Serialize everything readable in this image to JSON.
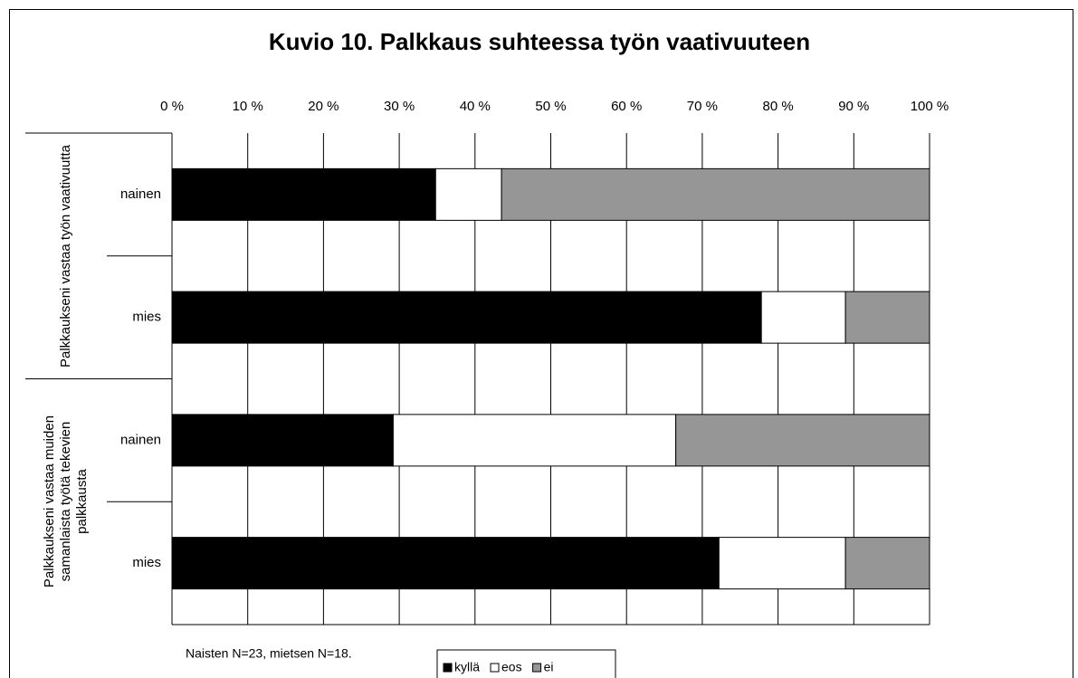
{
  "chart_data": {
    "type": "stacked_barh",
    "title": "Kuvio 10. Palkkaus suhteessa työn vaativuuteen",
    "groups": [
      {
        "name": "Palkkaukseni vastaa työn vaativuutta",
        "categories": [
          "nainen",
          "mies"
        ]
      },
      {
        "name": "Palkkaukseni vastaa muiden samanlaista työtä tekevien palkkausta",
        "categories": [
          "nainen",
          "mies"
        ]
      }
    ],
    "series": [
      {
        "name": "kyllä",
        "color": "#000000",
        "values": [
          34.8,
          77.8,
          29.2,
          72.2
        ]
      },
      {
        "name": "eos",
        "color": "#ffffff",
        "values": [
          8.7,
          11.1,
          37.3,
          16.7
        ]
      },
      {
        "name": "ei",
        "color": "#969696",
        "values": [
          56.5,
          11.1,
          33.5,
          11.1
        ]
      }
    ],
    "xlim": [
      0,
      100
    ],
    "xticks": [
      {
        "value": 0,
        "label": "0 %"
      },
      {
        "value": 10,
        "label": "10 %"
      },
      {
        "value": 20,
        "label": "20 %"
      },
      {
        "value": 30,
        "label": "30 %"
      },
      {
        "value": 40,
        "label": "40 %"
      },
      {
        "value": 50,
        "label": "50 %"
      },
      {
        "value": 60,
        "label": "60 %"
      },
      {
        "value": 70,
        "label": "70 %"
      },
      {
        "value": 80,
        "label": "80 %"
      },
      {
        "value": 90,
        "label": "90 %"
      },
      {
        "value": 100,
        "label": "100 %"
      }
    ],
    "grid": true,
    "legend": "bottom",
    "footnote": "Naisten N=23, mietsen N=18."
  }
}
